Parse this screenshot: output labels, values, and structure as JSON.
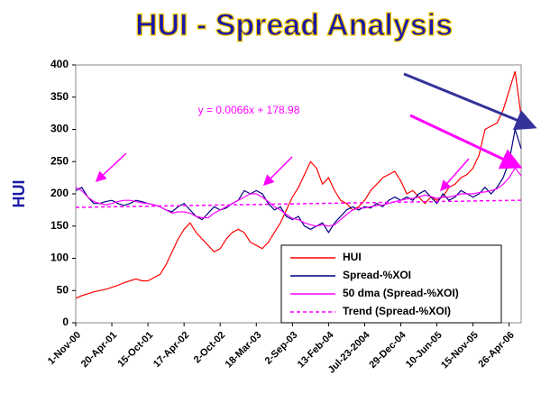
{
  "chart_data": {
    "type": "line",
    "title": "HUI - Spread Analysis",
    "y_label": "HUI",
    "annotation": "y = 0.0066x + 178.98",
    "categories": [
      "1-Nov-00",
      null,
      null,
      null,
      null,
      null,
      "20-Apr-01",
      null,
      null,
      null,
      null,
      null,
      "15-Oct-01",
      null,
      null,
      null,
      null,
      null,
      "17-Apr-02",
      null,
      null,
      null,
      null,
      null,
      "2-Oct-02",
      null,
      null,
      null,
      null,
      null,
      "18-Mar-03",
      null,
      null,
      null,
      null,
      null,
      "2-Sep-03",
      null,
      null,
      null,
      null,
      null,
      "13-Feb-04",
      null,
      null,
      null,
      null,
      null,
      "Jul-23-2004",
      null,
      null,
      null,
      null,
      null,
      "29-Dec-04",
      null,
      null,
      null,
      null,
      null,
      "10-Jun-05",
      null,
      null,
      null,
      null,
      null,
      "15-Nov-05",
      null,
      null,
      null,
      null,
      null,
      "26-Apr-06",
      null,
      null
    ],
    "ylim": [
      0,
      400
    ],
    "yticks": [
      0,
      50,
      100,
      150,
      200,
      250,
      300,
      350,
      400
    ],
    "legend": "lower-right",
    "series": [
      {
        "name": "HUI",
        "color": "#ff0000",
        "style": "solid",
        "values": [
          38,
          42,
          45,
          48,
          50,
          52,
          55,
          58,
          62,
          65,
          68,
          65,
          65,
          70,
          75,
          90,
          110,
          130,
          145,
          155,
          140,
          130,
          120,
          110,
          115,
          130,
          140,
          145,
          140,
          125,
          120,
          115,
          125,
          140,
          155,
          175,
          195,
          210,
          230,
          250,
          240,
          215,
          225,
          205,
          190,
          185,
          175,
          180,
          190,
          205,
          215,
          225,
          230,
          235,
          220,
          200,
          205,
          195,
          185,
          195,
          190,
          195,
          210,
          215,
          225,
          230,
          240,
          260,
          300,
          305,
          310,
          330,
          360,
          390,
          320
        ]
      },
      {
        "name": "Spread-%XOI",
        "color": "#000080",
        "style": "solid",
        "values": [
          205,
          210,
          195,
          185,
          185,
          188,
          190,
          185,
          182,
          185,
          190,
          188,
          185,
          183,
          180,
          175,
          172,
          180,
          185,
          175,
          165,
          160,
          170,
          180,
          175,
          178,
          185,
          190,
          205,
          200,
          205,
          200,
          185,
          175,
          180,
          165,
          160,
          165,
          150,
          145,
          150,
          155,
          140,
          155,
          165,
          175,
          180,
          175,
          180,
          178,
          185,
          180,
          190,
          195,
          190,
          195,
          190,
          200,
          205,
          195,
          185,
          200,
          190,
          195,
          205,
          200,
          195,
          200,
          210,
          200,
          210,
          225,
          250,
          300,
          270
        ]
      },
      {
        "name": "50 dma (Spread-%XOI)",
        "color": "#ff00ff",
        "style": "solid",
        "values": [
          210,
          205,
          195,
          188,
          185,
          183,
          185,
          188,
          190,
          190,
          188,
          186,
          185,
          183,
          180,
          175,
          170,
          172,
          172,
          170,
          165,
          163,
          163,
          170,
          175,
          180,
          185,
          190,
          195,
          200,
          200,
          195,
          188,
          180,
          175,
          168,
          162,
          160,
          155,
          152,
          150,
          152,
          150,
          152,
          160,
          168,
          175,
          178,
          178,
          180,
          182,
          183,
          185,
          188,
          190,
          192,
          193,
          195,
          198,
          196,
          193,
          195,
          195,
          197,
          200,
          200,
          200,
          202,
          203,
          205,
          208,
          215,
          225,
          240,
          228
        ]
      },
      {
        "name": "Trend (Spread-%XOI)",
        "color": "#ff00ff",
        "style": "dashed",
        "values": [
          179.0,
          179.2,
          179.3,
          179.5,
          179.6,
          179.8,
          179.9,
          180.1,
          180.2,
          180.4,
          180.5,
          180.7,
          180.8,
          181.0,
          181.1,
          181.3,
          181.4,
          181.6,
          181.7,
          181.9,
          182.0,
          182.2,
          182.3,
          182.5,
          182.6,
          182.8,
          182.9,
          183.1,
          183.2,
          183.4,
          183.5,
          183.7,
          183.8,
          184.0,
          184.1,
          184.3,
          184.4,
          184.6,
          184.7,
          184.9,
          185.0,
          185.2,
          185.3,
          185.5,
          185.6,
          185.8,
          185.9,
          186.1,
          186.2,
          186.4,
          186.5,
          186.7,
          186.8,
          187.0,
          187.1,
          187.3,
          187.4,
          187.6,
          187.7,
          187.9,
          188.0,
          188.2,
          188.3,
          188.5,
          188.6,
          188.8,
          188.9,
          189.1,
          189.2,
          189.4,
          189.5,
          189.7,
          189.8,
          190.0,
          190.1
        ]
      }
    ]
  }
}
